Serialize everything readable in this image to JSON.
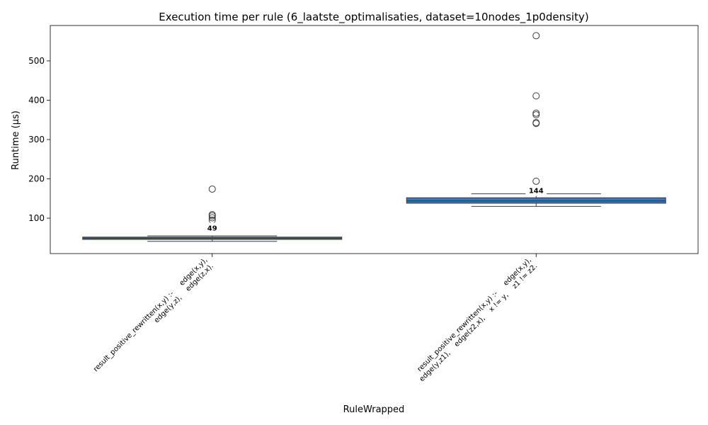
{
  "chart_data": {
    "type": "box",
    "title": "Execution time per rule (6_laatste_optimalisaties, dataset=10nodes_1p0density)",
    "xlabel": "RuleWrapped",
    "ylabel": "Runtime (µs)",
    "ylim": [
      10,
      590
    ],
    "yticks": [
      100,
      200,
      300,
      400,
      500
    ],
    "box_color": "#3a75b0",
    "categories": [
      {
        "label_lines": [
          "result_positive_rewritten(x,y) :-     edge(x,y),",
          "edge(y,z),    edge(z,x)."
        ],
        "q1": 46,
        "q3": 52,
        "median": 49,
        "whisker_low": 41,
        "whisker_high": 55,
        "median_label": "49",
        "outliers": [
          95,
          101,
          106,
          109,
          174
        ]
      },
      {
        "label_lines": [
          "result_positive_rewritten(x,y) :-     edge(x,y),",
          "edge(y,z1),    edge(z2,x),    x != y,    z1 != z2."
        ],
        "q1": 138,
        "q3": 152,
        "median": 144,
        "whisker_low": 130,
        "whisker_high": 162,
        "median_label": "144",
        "outliers": [
          194,
          341,
          343,
          363,
          367,
          411,
          564
        ]
      }
    ]
  }
}
